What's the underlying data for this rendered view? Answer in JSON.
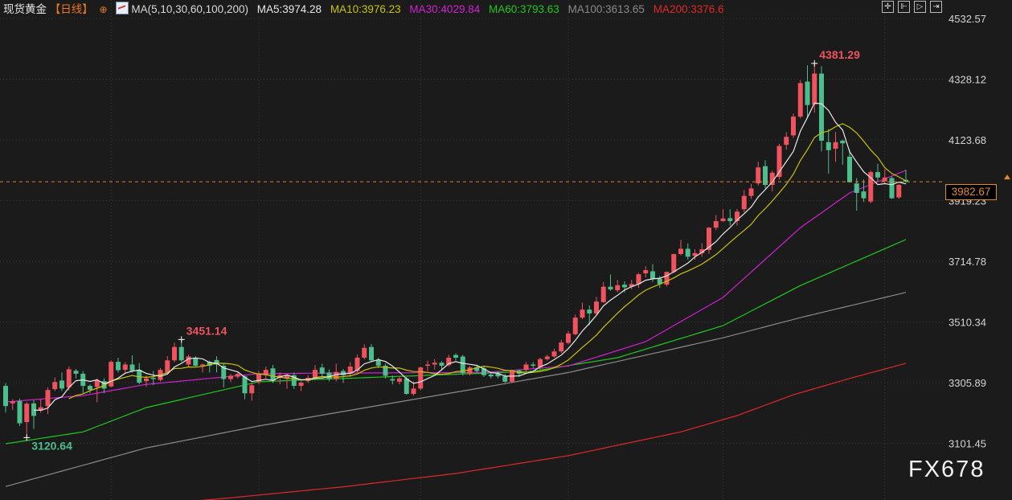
{
  "header": {
    "instrument": "现货黄金",
    "period": "【日线】",
    "ma_config": "MA(5,10,30,60,100,200)",
    "ma5": "MA5:3974.28",
    "ma10": "MA10:3976.23",
    "ma30": "MA30:4029.84",
    "ma60": "MA60:3793.63",
    "ma100": "MA100:3613.65",
    "ma200": "MA200:3376.6"
  },
  "toolbar": {
    "icons": [
      "crosshair-icon",
      "zoom-in-icon",
      "play-icon",
      "scroll-end-icon"
    ]
  },
  "current_price": "3982.67",
  "watermark": "FX678",
  "chart_data": {
    "type": "candlestick",
    "title": "",
    "y_ticks": [
      "4532.57",
      "4328.12",
      "4123.68",
      "3919.23",
      "3714.78",
      "3510.34",
      "3305.89",
      "3101.45"
    ],
    "ylim": [
      3050,
      4560
    ],
    "grid": true,
    "colors": {
      "up": "#f0525e",
      "down": "#4cbd8c",
      "ma5": "#e8e8e8",
      "ma10": "#c8c400",
      "ma30": "#d020d0",
      "ma60": "#1ec81e",
      "ma100": "#8a8a8a",
      "ma200": "#e02828",
      "current": "#e08a28"
    },
    "annotations": [
      {
        "label": "4381.29",
        "index": 115,
        "value": 4381.29,
        "color": "#f0525e"
      },
      {
        "label": "3451.14",
        "index": 25,
        "value": 3451.14,
        "color": "#f0525e"
      },
      {
        "label": "3120.64",
        "index": 3,
        "value": 3120.64,
        "color": "#4cbd8c"
      }
    ],
    "ohlc": [
      [
        3295,
        3304,
        3205,
        3227
      ],
      [
        3236,
        3250,
        3214,
        3243
      ],
      [
        3244,
        3252,
        3160,
        3169
      ],
      [
        3173,
        3240,
        3120.64,
        3235
      ],
      [
        3236,
        3247,
        3150,
        3194
      ],
      [
        3212,
        3250,
        3205,
        3223
      ],
      [
        3227,
        3290,
        3200,
        3281
      ],
      [
        3284,
        3323,
        3278,
        3308
      ],
      [
        3313,
        3340,
        3278,
        3286
      ],
      [
        3290,
        3360,
        3280,
        3351
      ],
      [
        3346,
        3352,
        3320,
        3336
      ],
      [
        3336,
        3345,
        3270,
        3295
      ],
      [
        3295,
        3300,
        3270,
        3282
      ],
      [
        3291,
        3320,
        3240,
        3313
      ],
      [
        3311,
        3320,
        3270,
        3286
      ],
      [
        3293,
        3380,
        3290,
        3376
      ],
      [
        3376,
        3390,
        3340,
        3348
      ],
      [
        3349,
        3375,
        3340,
        3367
      ],
      [
        3367,
        3398,
        3340,
        3345
      ],
      [
        3349,
        3372,
        3300,
        3306
      ],
      [
        3311,
        3330,
        3292,
        3320
      ],
      [
        3322,
        3345,
        3298,
        3318
      ],
      [
        3315,
        3355,
        3310,
        3349
      ],
      [
        3340,
        3395,
        3335,
        3381
      ],
      [
        3381,
        3440,
        3375,
        3426
      ],
      [
        3426,
        3451.14,
        3375,
        3381
      ],
      [
        3367,
        3400,
        3360,
        3394
      ],
      [
        3390,
        3395,
        3360,
        3363
      ],
      [
        3363,
        3370,
        3340,
        3367
      ],
      [
        3376,
        3380,
        3340,
        3363
      ],
      [
        3382,
        3395,
        3340,
        3367
      ],
      [
        3363,
        3370,
        3290,
        3318
      ],
      [
        3318,
        3335,
        3308,
        3329
      ],
      [
        3326,
        3340,
        3320,
        3335
      ],
      [
        3327,
        3330,
        3250,
        3270
      ],
      [
        3270,
        3305,
        3245,
        3297
      ],
      [
        3309,
        3345,
        3300,
        3336
      ],
      [
        3331,
        3360,
        3320,
        3349
      ],
      [
        3354,
        3366,
        3305,
        3313
      ],
      [
        3322,
        3340,
        3300,
        3331
      ],
      [
        3322,
        3335,
        3285,
        3331
      ],
      [
        3331,
        3340,
        3285,
        3295
      ],
      [
        3295,
        3310,
        3278,
        3306
      ],
      [
        3311,
        3330,
        3305,
        3322
      ],
      [
        3322,
        3365,
        3315,
        3349
      ],
      [
        3357,
        3370,
        3320,
        3336
      ],
      [
        3340,
        3350,
        3310,
        3318
      ],
      [
        3318,
        3370,
        3310,
        3342
      ],
      [
        3345,
        3352,
        3305,
        3331
      ],
      [
        3336,
        3375,
        3325,
        3360
      ],
      [
        3345,
        3400,
        3340,
        3390
      ],
      [
        3390,
        3435,
        3385,
        3423
      ],
      [
        3426,
        3436,
        3375,
        3381
      ],
      [
        3381,
        3390,
        3355,
        3363
      ],
      [
        3363,
        3370,
        3320,
        3329
      ],
      [
        3318,
        3330,
        3300,
        3313
      ],
      [
        3309,
        3325,
        3300,
        3320
      ],
      [
        3320,
        3325,
        3265,
        3268
      ],
      [
        3268,
        3310,
        3262,
        3286
      ],
      [
        3286,
        3360,
        3280,
        3357
      ],
      [
        3363,
        3380,
        3345,
        3367
      ],
      [
        3367,
        3385,
        3350,
        3373
      ],
      [
        3373,
        3378,
        3350,
        3363
      ],
      [
        3365,
        3400,
        3360,
        3390
      ],
      [
        3399,
        3405,
        3380,
        3390
      ],
      [
        3394,
        3400,
        3330,
        3338
      ],
      [
        3336,
        3362,
        3330,
        3357
      ],
      [
        3358,
        3366,
        3340,
        3345
      ],
      [
        3354,
        3363,
        3325,
        3331
      ],
      [
        3333,
        3340,
        3320,
        3327
      ],
      [
        3336,
        3345,
        3320,
        3327
      ],
      [
        3327,
        3335,
        3305,
        3309
      ],
      [
        3309,
        3350,
        3305,
        3345
      ],
      [
        3347,
        3350,
        3325,
        3336
      ],
      [
        3349,
        3375,
        3340,
        3367
      ],
      [
        3367,
        3375,
        3355,
        3363
      ],
      [
        3358,
        3390,
        3350,
        3385
      ],
      [
        3385,
        3400,
        3380,
        3394
      ],
      [
        3394,
        3420,
        3390,
        3411
      ],
      [
        3411,
        3450,
        3405,
        3441
      ],
      [
        3440,
        3480,
        3435,
        3471
      ],
      [
        3469,
        3535,
        3465,
        3525
      ],
      [
        3525,
        3575,
        3520,
        3552
      ],
      [
        3552,
        3566,
        3500,
        3539
      ],
      [
        3539,
        3595,
        3535,
        3579
      ],
      [
        3577,
        3645,
        3575,
        3629
      ],
      [
        3629,
        3670,
        3615,
        3620
      ],
      [
        3617,
        3652,
        3610,
        3634
      ],
      [
        3636,
        3647,
        3610,
        3627
      ],
      [
        3629,
        3652,
        3620,
        3638
      ],
      [
        3638,
        3676,
        3625,
        3671
      ],
      [
        3674,
        3698,
        3660,
        3685
      ],
      [
        3681,
        3705,
        3645,
        3656
      ],
      [
        3656,
        3665,
        3625,
        3638
      ],
      [
        3636,
        3680,
        3630,
        3679
      ],
      [
        3679,
        3740,
        3675,
        3739
      ],
      [
        3739,
        3787,
        3735,
        3757
      ],
      [
        3757,
        3775,
        3720,
        3730
      ],
      [
        3733,
        3755,
        3720,
        3742
      ],
      [
        3742,
        3775,
        3730,
        3755
      ],
      [
        3753,
        3830,
        3740,
        3828
      ],
      [
        3828,
        3870,
        3820,
        3850
      ],
      [
        3850,
        3890,
        3848,
        3859
      ],
      [
        3860,
        3890,
        3835,
        3850
      ],
      [
        3850,
        3890,
        3835,
        3882
      ],
      [
        3890,
        3955,
        3880,
        3935
      ],
      [
        3935,
        3975,
        3925,
        3960
      ],
      [
        3977,
        4050,
        3970,
        4031
      ],
      [
        4035,
        4055,
        3960,
        3972
      ],
      [
        3972,
        4020,
        3950,
        4013
      ],
      [
        3999,
        4110,
        3990,
        4103
      ],
      [
        4107,
        4150,
        4090,
        4134
      ],
      [
        4139,
        4212,
        4130,
        4202
      ],
      [
        4202,
        4325,
        4196,
        4315
      ],
      [
        4320,
        4375,
        4200,
        4241
      ],
      [
        4243,
        4381.29,
        4215,
        4347
      ],
      [
        4347,
        4372,
        4085,
        4121
      ],
      [
        4116,
        4160,
        4010,
        4089
      ],
      [
        4094,
        4150,
        4050,
        4116
      ],
      [
        4121,
        4125,
        4040,
        4112
      ],
      [
        4067,
        4090,
        3980,
        3981
      ],
      [
        3977,
        3995,
        3885,
        3945
      ],
      [
        3950,
        3990,
        3915,
        3927
      ],
      [
        3916,
        4020,
        3910,
        4015
      ],
      [
        4015,
        4043,
        3985,
        3997
      ],
      [
        3984,
        4025,
        3975,
        3997
      ],
      [
        3995,
        4000,
        3925,
        3927
      ],
      [
        3930,
        3975,
        3925,
        3972
      ],
      [
        3989,
        4023,
        3978,
        3983
      ]
    ],
    "ma_lines": {
      "ma30": [
        [
          0,
          3241
        ],
        [
          11,
          3262
        ],
        [
          20,
          3300
        ],
        [
          36,
          3336
        ],
        [
          45,
          3338
        ],
        [
          68,
          3340
        ],
        [
          80,
          3362
        ],
        [
          91,
          3444
        ],
        [
          102,
          3593
        ],
        [
          113,
          3828
        ],
        [
          120,
          3945
        ],
        [
          128,
          4021
        ]
      ],
      "ma60": [
        [
          0,
          3100
        ],
        [
          11,
          3140
        ],
        [
          20,
          3222
        ],
        [
          36,
          3309
        ],
        [
          56,
          3327
        ],
        [
          75,
          3344
        ],
        [
          87,
          3390
        ],
        [
          102,
          3498
        ],
        [
          113,
          3633
        ],
        [
          128,
          3788
        ]
      ],
      "ma100": [
        [
          0,
          2956
        ],
        [
          20,
          3086
        ],
        [
          36,
          3160
        ],
        [
          68,
          3290
        ],
        [
          80,
          3340
        ],
        [
          102,
          3457
        ],
        [
          113,
          3525
        ],
        [
          128,
          3610
        ]
      ],
      "ma200": [
        [
          0,
          2850
        ],
        [
          16,
          2885
        ],
        [
          32,
          2918
        ],
        [
          48,
          2955
        ],
        [
          64,
          3000
        ],
        [
          80,
          3060
        ],
        [
          96,
          3140
        ],
        [
          104,
          3195
        ],
        [
          112,
          3265
        ],
        [
          120,
          3320
        ],
        [
          128,
          3371
        ]
      ]
    }
  }
}
